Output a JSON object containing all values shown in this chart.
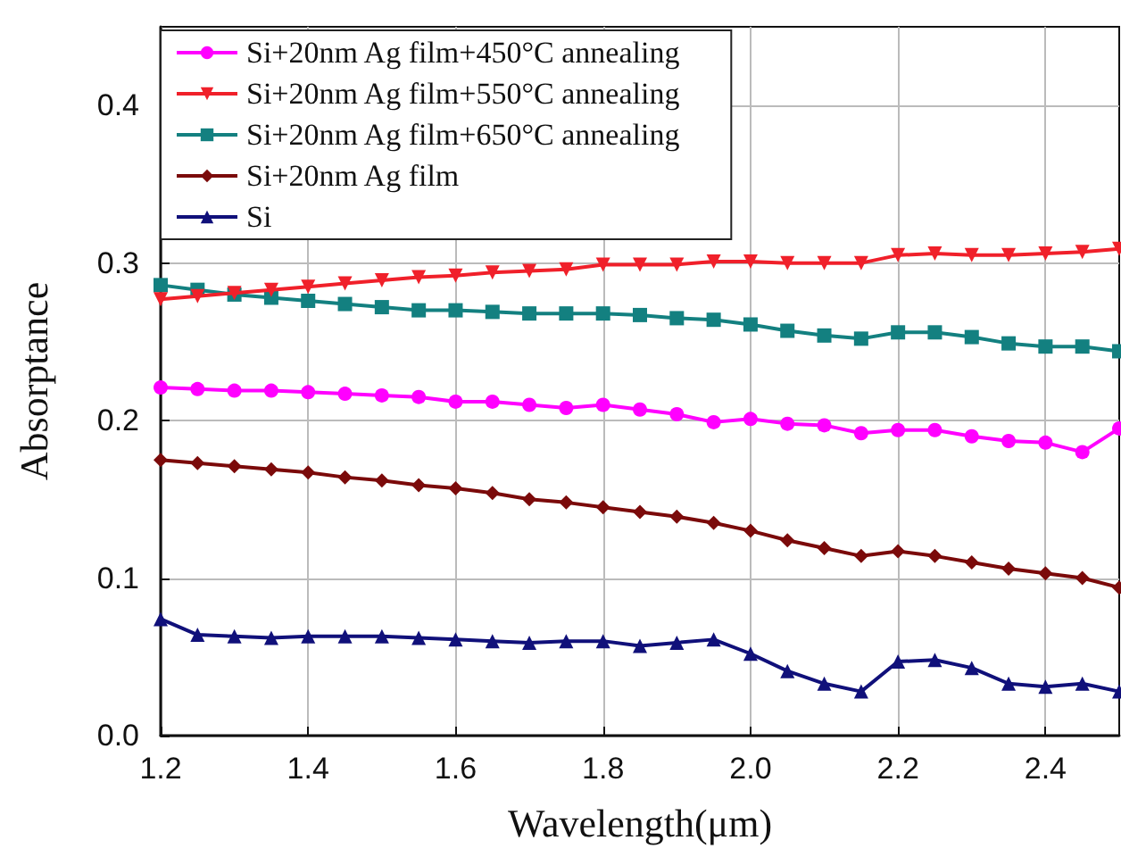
{
  "chart_data": {
    "type": "line",
    "xlabel": "Wavelength(μm)",
    "ylabel": "Absorptance",
    "x": [
      1.2,
      1.25,
      1.3,
      1.35,
      1.4,
      1.45,
      1.5,
      1.55,
      1.6,
      1.65,
      1.7,
      1.75,
      1.8,
      1.85,
      1.9,
      1.95,
      2.0,
      2.05,
      2.1,
      2.15,
      2.2,
      2.25,
      2.3,
      2.35,
      2.4,
      2.45,
      2.5
    ],
    "series": [
      {
        "name": "Si+20nm Ag film+450°C annealing",
        "color": "#ff00ff",
        "marker": "circle",
        "values": [
          0.221,
          0.22,
          0.219,
          0.219,
          0.218,
          0.217,
          0.216,
          0.215,
          0.212,
          0.212,
          0.21,
          0.208,
          0.21,
          0.207,
          0.204,
          0.199,
          0.201,
          0.198,
          0.197,
          0.192,
          0.194,
          0.194,
          0.19,
          0.187,
          0.186,
          0.18,
          0.195
        ]
      },
      {
        "name": "Si+20nm Ag film+550°C annealing",
        "color": "#f0202a",
        "marker": "triangle-down",
        "values": [
          0.277,
          0.279,
          0.281,
          0.283,
          0.285,
          0.287,
          0.289,
          0.291,
          0.292,
          0.294,
          0.295,
          0.296,
          0.299,
          0.299,
          0.299,
          0.301,
          0.301,
          0.3,
          0.3,
          0.3,
          0.305,
          0.306,
          0.305,
          0.305,
          0.306,
          0.307,
          0.309
        ]
      },
      {
        "name": "Si+20nm Ag film+650°C annealing",
        "color": "#138080",
        "marker": "square",
        "values": [
          0.286,
          0.283,
          0.28,
          0.278,
          0.276,
          0.274,
          0.272,
          0.27,
          0.27,
          0.269,
          0.268,
          0.268,
          0.268,
          0.267,
          0.265,
          0.264,
          0.261,
          0.257,
          0.254,
          0.252,
          0.256,
          0.256,
          0.253,
          0.249,
          0.247,
          0.247,
          0.244
        ]
      },
      {
        "name": "Si+20nm Ag film",
        "color": "#7b0a0a",
        "marker": "diamond",
        "values": [
          0.175,
          0.173,
          0.171,
          0.169,
          0.167,
          0.164,
          0.162,
          0.159,
          0.157,
          0.154,
          0.15,
          0.148,
          0.145,
          0.142,
          0.139,
          0.135,
          0.13,
          0.124,
          0.119,
          0.114,
          0.117,
          0.114,
          0.11,
          0.106,
          0.103,
          0.1,
          0.094
        ]
      },
      {
        "name": "Si",
        "color": "#10107a",
        "marker": "triangle",
        "values": [
          0.074,
          0.064,
          0.063,
          0.062,
          0.063,
          0.063,
          0.063,
          0.062,
          0.061,
          0.06,
          0.059,
          0.06,
          0.06,
          0.057,
          0.059,
          0.061,
          0.052,
          0.041,
          0.033,
          0.028,
          0.047,
          0.048,
          0.043,
          0.033,
          0.031,
          0.033,
          0.028
        ]
      }
    ],
    "xlim": [
      1.2,
      2.5
    ],
    "xticks": [
      {
        "value": 1.2,
        "label": "1.2"
      },
      {
        "value": 1.4,
        "label": "1.4"
      },
      {
        "value": 1.6,
        "label": "1.6"
      },
      {
        "value": 1.8,
        "label": "1.8"
      },
      {
        "value": 2.0,
        "label": "2.0"
      },
      {
        "value": 2.2,
        "label": "2.2"
      },
      {
        "value": 2.4,
        "label": "2.4"
      }
    ],
    "ylim": [
      0,
      0.45
    ],
    "yticks": [
      {
        "value": 0,
        "label": "0.0"
      },
      {
        "value": 0.1,
        "label": "0.1"
      },
      {
        "value": 0.2,
        "label": "0.2"
      },
      {
        "value": 0.3,
        "label": "0.3"
      },
      {
        "value": 0.4,
        "label": "0.4"
      }
    ],
    "grid": true,
    "legend": "top left",
    "line_style": "solid"
  }
}
